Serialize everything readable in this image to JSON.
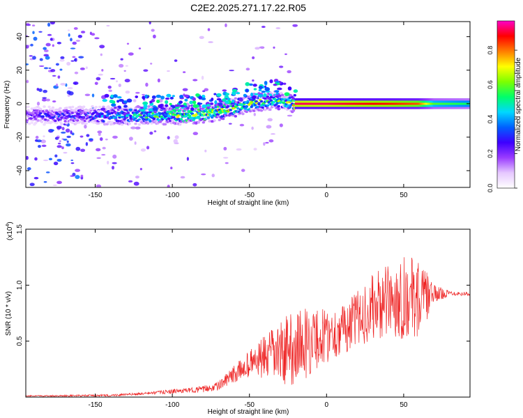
{
  "title": "C2E2.2025.271.17.22.R05",
  "colors": {
    "colormap": [
      "#ffffff",
      "#e6c8ff",
      "#9a3cff",
      "#3d00ff",
      "#0060ff",
      "#00d8ff",
      "#00ff6a",
      "#7dff00",
      "#ffff00",
      "#ff7d00",
      "#ff0000",
      "#ff00c8"
    ],
    "line": "#ee2222",
    "axis": "#000000"
  },
  "chart_data": [
    {
      "type": "heatmap",
      "title": "C2E2.2025.271.17.22.R05",
      "xlabel": "Height of straight line (km)",
      "ylabel": "Frequency (Hz)",
      "xlim": [
        -195,
        93
      ],
      "ylim": [
        -50,
        49
      ],
      "xticks": [
        -150,
        -100,
        -50,
        0,
        50
      ],
      "yticks": [
        -40,
        -20,
        0,
        20,
        40
      ],
      "grid": false,
      "colorbar": {
        "label": "Normalized spectral amplitude",
        "range": [
          0,
          0.97
        ],
        "ticks": [
          0.0,
          0.2,
          0.4,
          0.6,
          0.8
        ]
      },
      "ridge": {
        "x": [
          -195,
          -150,
          -130,
          -110,
          -90,
          -70,
          -50,
          -35,
          -25,
          -20,
          0,
          20,
          40,
          60,
          70,
          93
        ],
        "frequency": [
          -7,
          -7,
          -7,
          -7,
          -7,
          -5,
          0,
          2,
          1,
          0,
          0,
          0,
          0,
          0,
          0,
          0
        ],
        "peak_amplitude": [
          0.25,
          0.35,
          0.5,
          0.55,
          0.7,
          0.7,
          0.6,
          0.6,
          0.6,
          0.95,
          0.95,
          0.92,
          0.9,
          0.85,
          0.6,
          0.55
        ]
      }
    },
    {
      "type": "line",
      "xlabel": "Height of straight line (km)",
      "ylabel": "SNR (10 * v/v)",
      "exponent_label": "(x10",
      "exponent_power": "4",
      "exponent_close": ")",
      "xlim": [
        -195,
        93
      ],
      "ylim": [
        0,
        1.5
      ],
      "xticks": [
        -150,
        -100,
        -50,
        0,
        50
      ],
      "yticks": [
        0.5,
        1.0,
        1.5
      ],
      "ytick_labels": [
        "0.5",
        "1.0",
        "1.5"
      ],
      "grid": false,
      "series": [
        {
          "name": "SNR",
          "envelope_x": [
            -195,
            -140,
            -120,
            -100,
            -90,
            -80,
            -70,
            -60,
            -50,
            -40,
            -30,
            -20,
            -10,
            0,
            10,
            20,
            30,
            40,
            50,
            60,
            70,
            80,
            93
          ],
          "mean": [
            0.01,
            0.015,
            0.03,
            0.05,
            0.06,
            0.07,
            0.1,
            0.2,
            0.3,
            0.35,
            0.4,
            0.45,
            0.5,
            0.55,
            0.6,
            0.7,
            0.8,
            0.85,
            0.9,
            0.88,
            0.92,
            0.93,
            0.92
          ],
          "amplitude": [
            0.005,
            0.01,
            0.01,
            0.02,
            0.02,
            0.03,
            0.04,
            0.08,
            0.12,
            0.2,
            0.28,
            0.35,
            0.3,
            0.25,
            0.22,
            0.25,
            0.3,
            0.33,
            0.38,
            0.35,
            0.08,
            0.02,
            0.02
          ]
        }
      ]
    }
  ]
}
